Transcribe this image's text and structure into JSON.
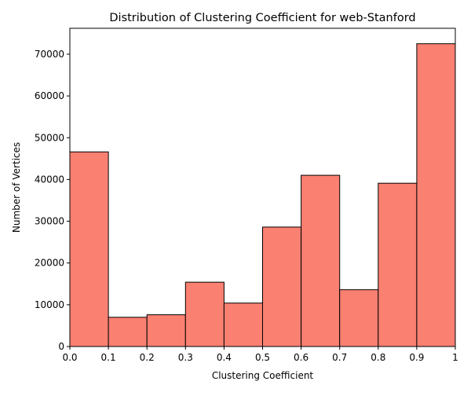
{
  "chart_data": {
    "type": "bar",
    "title": "Distribution of Clustering Coefficient for web-Stanford",
    "xlabel": "Clustering Coefficient",
    "ylabel": "Number of Vertices",
    "bin_edges": [
      0.0,
      0.1,
      0.2,
      0.3,
      0.4,
      0.5,
      0.6,
      0.7,
      0.8,
      0.9,
      1.0
    ],
    "values": [
      46600,
      7000,
      7600,
      15400,
      10400,
      28600,
      41000,
      13600,
      39100,
      72500
    ],
    "xlim": [
      0,
      1
    ],
    "ylim": [
      0,
      76200
    ],
    "x_ticks": [
      0,
      0.1,
      0.2,
      0.3,
      0.4,
      0.5,
      0.6,
      0.7,
      0.8,
      0.9,
      1
    ],
    "x_tick_labels": [
      "0.0",
      "0.1",
      "0.2",
      "0.3",
      "0.4",
      "0.5",
      "0.6",
      "0.7",
      "0.8",
      "0.9",
      "1"
    ],
    "y_ticks": [
      0,
      10000,
      20000,
      30000,
      40000,
      50000,
      60000,
      70000
    ],
    "y_tick_labels": [
      "0",
      "10000",
      "20000",
      "30000",
      "40000",
      "50000",
      "60000",
      "70000"
    ],
    "bar_color": "#fa8072",
    "edge_color": "#000000",
    "grid": false,
    "legend": "none"
  }
}
